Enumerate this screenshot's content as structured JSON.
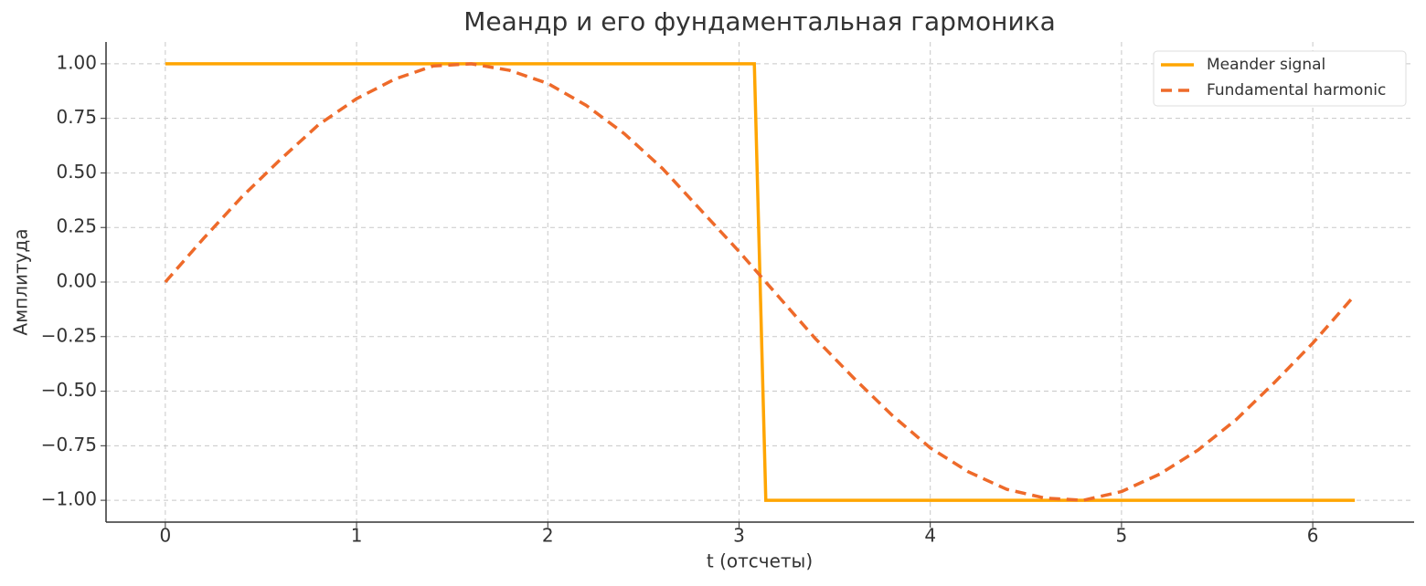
{
  "chart_data": {
    "type": "line",
    "title": "Меандр и его фундаментальная гармоника",
    "x_label": "t (отсчеты)",
    "y_label": "Амплитуда",
    "series": [
      {
        "name": "Meander signal",
        "color": "#ffa500",
        "dash": false,
        "x": [
          0,
          3.08,
          3.14,
          6.22
        ],
        "values": [
          1,
          1,
          -1,
          -1
        ]
      },
      {
        "name": "Fundamental harmonic",
        "color": "#ee6a2a",
        "dash": true,
        "x": [
          0,
          0.2,
          0.4,
          0.6,
          0.8,
          1.0,
          1.2,
          1.4,
          1.6,
          1.8,
          2.0,
          2.2,
          2.4,
          2.6,
          2.8,
          3.0,
          3.2,
          3.4,
          3.6,
          3.8,
          4.0,
          4.2,
          4.4,
          4.6,
          4.8,
          5.0,
          5.2,
          5.4,
          5.6,
          5.8,
          6.0,
          6.22
        ],
        "values": [
          0,
          0.2,
          0.39,
          0.56,
          0.72,
          0.84,
          0.93,
          0.99,
          1.0,
          0.97,
          0.91,
          0.81,
          0.68,
          0.52,
          0.33,
          0.14,
          -0.06,
          -0.26,
          -0.44,
          -0.61,
          -0.76,
          -0.87,
          -0.95,
          -0.99,
          -1.0,
          -0.96,
          -0.88,
          -0.77,
          -0.63,
          -0.46,
          -0.28,
          -0.06
        ]
      }
    ],
    "xlim": [
      -0.31,
      6.53
    ],
    "ylim": [
      -1.1,
      1.1
    ],
    "xticks": [
      0,
      1,
      2,
      3,
      4,
      5,
      6
    ],
    "yticks": [
      {
        "value": 1,
        "label": "1.00"
      },
      {
        "value": 0.75,
        "label": "0.75"
      },
      {
        "value": 0.5,
        "label": "0.50"
      },
      {
        "value": 0.25,
        "label": "0.25"
      },
      {
        "value": 0,
        "label": "0.00"
      },
      {
        "value": -0.25,
        "label": "−0.25"
      },
      {
        "value": -0.5,
        "label": "−0.50"
      },
      {
        "value": -0.75,
        "label": "−0.75"
      },
      {
        "value": -1,
        "label": "−1.00"
      }
    ],
    "grid": true,
    "legend": "upper right"
  }
}
